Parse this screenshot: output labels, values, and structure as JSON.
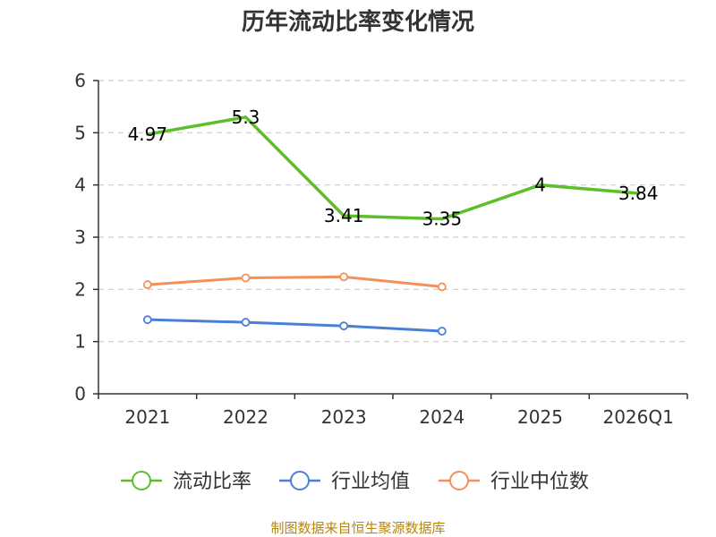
{
  "chart_data": {
    "type": "line",
    "title": "历年流动比率变化情况",
    "categories": [
      "2021",
      "2022",
      "2023",
      "2024",
      "2025",
      "2026Q1"
    ],
    "ylim": [
      0,
      6
    ],
    "yticks": [
      0,
      1,
      2,
      3,
      4,
      5,
      6
    ],
    "grid": "horizontal-dashed",
    "legend_position": "bottom",
    "series": [
      {
        "name": "流动比率",
        "color": "#5cbf2a",
        "values": [
          4.97,
          5.3,
          3.41,
          3.35,
          4,
          3.84
        ],
        "labels": [
          "4.97",
          "5.3",
          "3.41",
          "3.35",
          "4",
          "3.84"
        ],
        "markers": false
      },
      {
        "name": "行业均值",
        "color": "#4a7fd8",
        "values": [
          1.42,
          1.37,
          1.3,
          1.2,
          null,
          null
        ],
        "markers": true
      },
      {
        "name": "行业中位数",
        "color": "#f5905a",
        "values": [
          2.09,
          2.22,
          2.24,
          2.05,
          null,
          null
        ],
        "markers": true
      }
    ]
  },
  "source": "制图数据来自恒生聚源数据库"
}
